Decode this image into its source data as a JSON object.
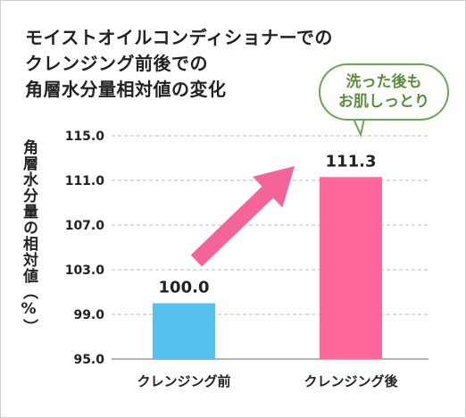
{
  "title_lines": [
    "モイストオイルコンディショナーでの",
    "クレンジング前後での",
    "角層水分量相対値の変化"
  ],
  "annotation": [
    "洗った後も",
    "お肌しっとり"
  ],
  "colors": {
    "bar_before": "#55c1ef",
    "bar_after": "#ff6699",
    "arrow": "#f4649a",
    "bubble_border": "#6aa84f",
    "grid": "#bbbbbb"
  },
  "chart_data": {
    "type": "bar",
    "title": "モイストオイルコンディショナーでのクレンジング前後での角層水分量相対値の変化",
    "ylabel": "角層水分量の相対値（%）",
    "xlabel": "",
    "categories": [
      "クレンジング前",
      "クレンジング後"
    ],
    "values": [
      100.0,
      111.3
    ],
    "data_labels": [
      "100.0",
      "111.3"
    ],
    "ylim": [
      95.0,
      115.0
    ],
    "yticks": [
      95.0,
      99.0,
      103.0,
      107.0,
      111.0,
      115.0
    ],
    "ytick_labels": [
      "95.0",
      "99.0",
      "103.0",
      "107.0",
      "111.0",
      "115.0"
    ],
    "grid": true,
    "grid_style": "dashed"
  }
}
